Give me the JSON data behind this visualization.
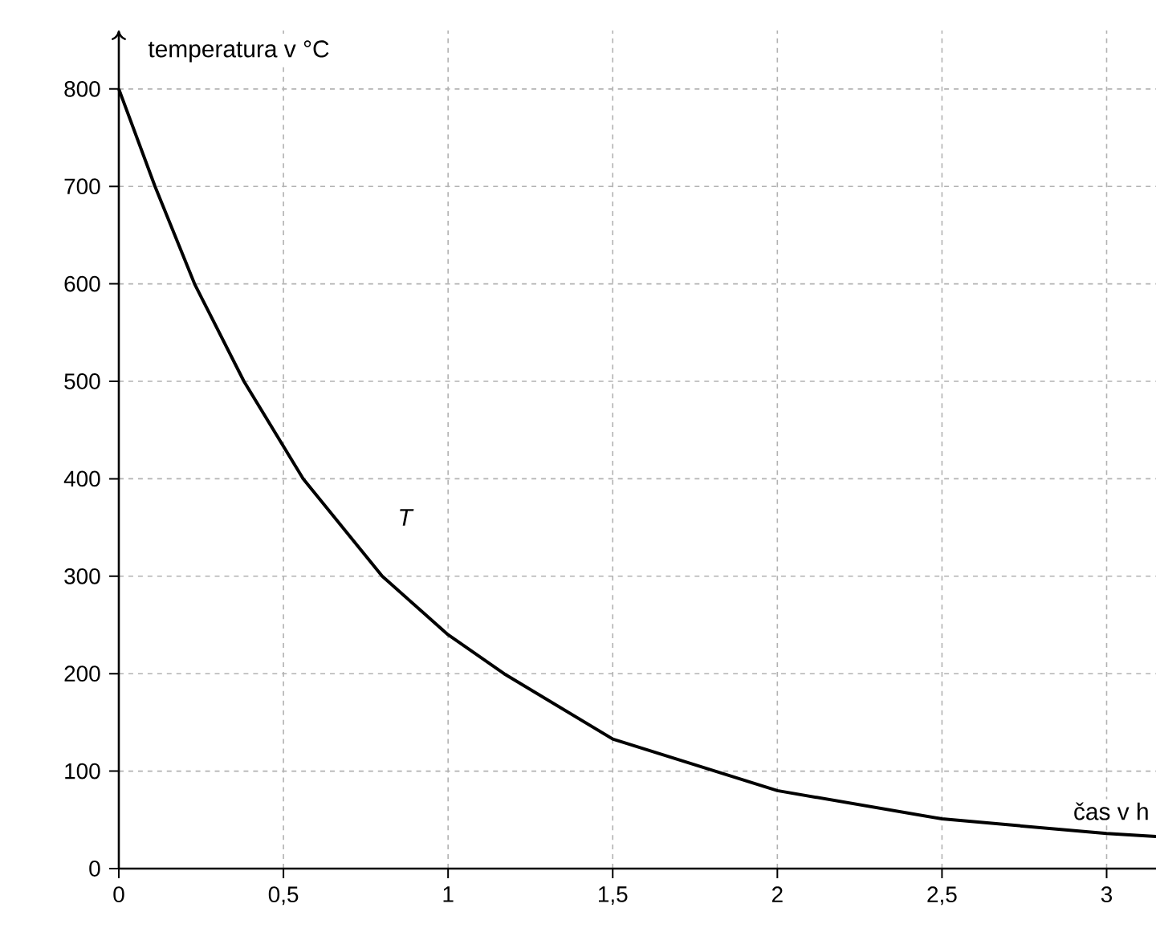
{
  "chart_data": {
    "type": "line",
    "xlabel": "čas v h",
    "ylabel": "temperatura v °C",
    "x": [
      0,
      0.11,
      0.23,
      0.38,
      0.56,
      0.8,
      1,
      1.17,
      1.5,
      2,
      2.5,
      3,
      3.15
    ],
    "series": [
      {
        "color": "#000000",
        "values": [
          800,
          700,
          600,
          500,
          400,
          300,
          240,
          200,
          133,
          80,
          51,
          36,
          33
        ]
      }
    ],
    "xlim": [
      0,
      3.15
    ],
    "ylim": [
      0,
      860
    ],
    "xticks": [
      0,
      {
        "value": 0.5,
        "label": "0,5"
      },
      1,
      {
        "value": 1.5,
        "label": "1,5"
      },
      2,
      {
        "value": 2.5,
        "label": "2,5"
      },
      3
    ],
    "yticks": [
      0,
      100,
      200,
      300,
      400,
      500,
      600,
      700,
      800
    ],
    "annotations": [
      "T"
    ],
    "grid": true,
    "marker": "none",
    "line_style": "solid"
  }
}
